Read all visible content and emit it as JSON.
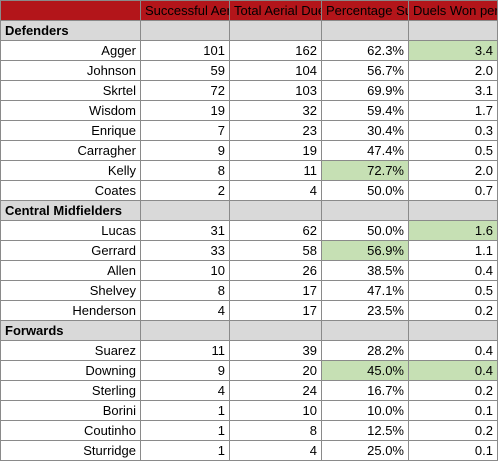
{
  "headers": {
    "col1": "Successful Aerial Duels",
    "col2": "Total Aerial Duels",
    "col3": "Percentage Successful",
    "col4": "Duels Won per Game"
  },
  "colors": {
    "header_bg": "#b3151a",
    "group_bg": "#d9d9d9",
    "highlight_bg": "#c6e0b4"
  },
  "groups": [
    {
      "label": "Defenders",
      "rows": [
        {
          "name": "Agger",
          "successful": "101",
          "total": "162",
          "pct": "62.3%",
          "per_game": "3.4",
          "hl_pct": false,
          "hl_pg": true
        },
        {
          "name": "Johnson",
          "successful": "59",
          "total": "104",
          "pct": "56.7%",
          "per_game": "2.0",
          "hl_pct": false,
          "hl_pg": false
        },
        {
          "name": "Skrtel",
          "successful": "72",
          "total": "103",
          "pct": "69.9%",
          "per_game": "3.1",
          "hl_pct": false,
          "hl_pg": false
        },
        {
          "name": "Wisdom",
          "successful": "19",
          "total": "32",
          "pct": "59.4%",
          "per_game": "1.7",
          "hl_pct": false,
          "hl_pg": false
        },
        {
          "name": "Enrique",
          "successful": "7",
          "total": "23",
          "pct": "30.4%",
          "per_game": "0.3",
          "hl_pct": false,
          "hl_pg": false
        },
        {
          "name": "Carragher",
          "successful": "9",
          "total": "19",
          "pct": "47.4%",
          "per_game": "0.5",
          "hl_pct": false,
          "hl_pg": false
        },
        {
          "name": "Kelly",
          "successful": "8",
          "total": "11",
          "pct": "72.7%",
          "per_game": "2.0",
          "hl_pct": true,
          "hl_pg": false
        },
        {
          "name": "Coates",
          "successful": "2",
          "total": "4",
          "pct": "50.0%",
          "per_game": "0.7",
          "hl_pct": false,
          "hl_pg": false
        }
      ]
    },
    {
      "label": "Central Midfielders",
      "rows": [
        {
          "name": "Lucas",
          "successful": "31",
          "total": "62",
          "pct": "50.0%",
          "per_game": "1.6",
          "hl_pct": false,
          "hl_pg": true
        },
        {
          "name": "Gerrard",
          "successful": "33",
          "total": "58",
          "pct": "56.9%",
          "per_game": "1.1",
          "hl_pct": true,
          "hl_pg": false
        },
        {
          "name": "Allen",
          "successful": "10",
          "total": "26",
          "pct": "38.5%",
          "per_game": "0.4",
          "hl_pct": false,
          "hl_pg": false
        },
        {
          "name": "Shelvey",
          "successful": "8",
          "total": "17",
          "pct": "47.1%",
          "per_game": "0.5",
          "hl_pct": false,
          "hl_pg": false
        },
        {
          "name": "Henderson",
          "successful": "4",
          "total": "17",
          "pct": "23.5%",
          "per_game": "0.2",
          "hl_pct": false,
          "hl_pg": false
        }
      ]
    },
    {
      "label": "Forwards",
      "rows": [
        {
          "name": "Suarez",
          "successful": "11",
          "total": "39",
          "pct": "28.2%",
          "per_game": "0.4",
          "hl_pct": false,
          "hl_pg": false
        },
        {
          "name": "Downing",
          "successful": "9",
          "total": "20",
          "pct": "45.0%",
          "per_game": "0.4",
          "hl_pct": true,
          "hl_pg": true
        },
        {
          "name": "Sterling",
          "successful": "4",
          "total": "24",
          "pct": "16.7%",
          "per_game": "0.2",
          "hl_pct": false,
          "hl_pg": false
        },
        {
          "name": "Borini",
          "successful": "1",
          "total": "10",
          "pct": "10.0%",
          "per_game": "0.1",
          "hl_pct": false,
          "hl_pg": false
        },
        {
          "name": "Coutinho",
          "successful": "1",
          "total": "8",
          "pct": "12.5%",
          "per_game": "0.2",
          "hl_pct": false,
          "hl_pg": false
        },
        {
          "name": "Sturridge",
          "successful": "1",
          "total": "4",
          "pct": "25.0%",
          "per_game": "0.1",
          "hl_pct": false,
          "hl_pg": false
        }
      ]
    }
  ]
}
